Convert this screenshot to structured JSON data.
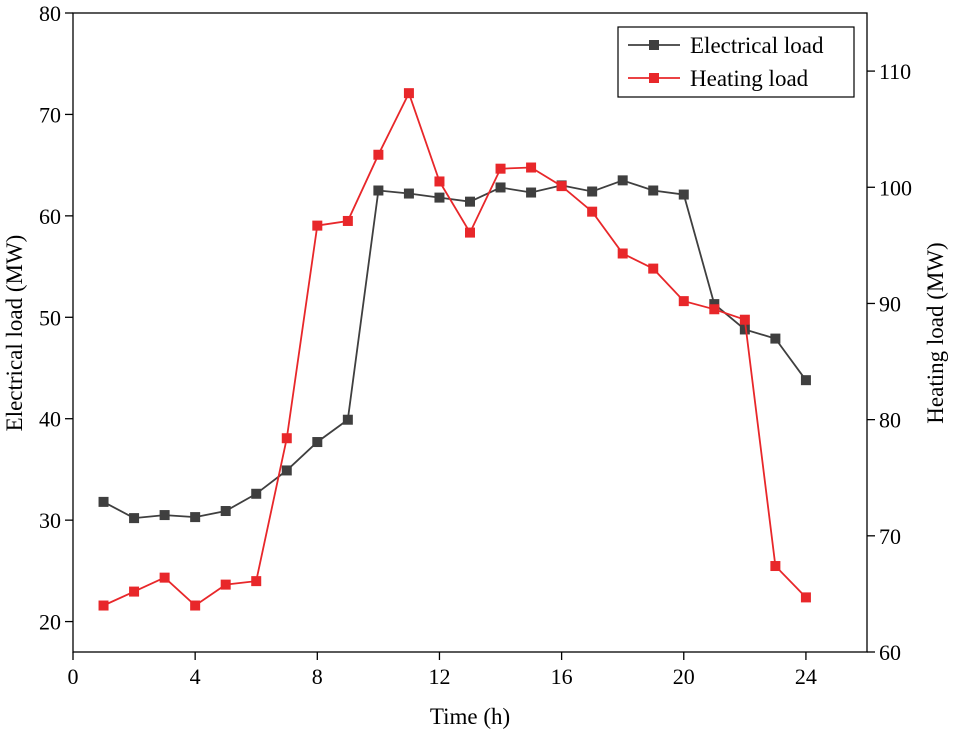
{
  "chart_data": {
    "type": "line",
    "title": "",
    "xlabel": "Time (h)",
    "ylabel": "Electrical load (MW)",
    "y2label": "Heating load (MW)",
    "xlim": [
      0,
      26
    ],
    "ylim": [
      17,
      80
    ],
    "y2lim": [
      60,
      115
    ],
    "xticks": [
      0,
      4,
      8,
      12,
      16,
      20,
      24
    ],
    "yticks": [
      20,
      30,
      40,
      50,
      60,
      70,
      80
    ],
    "y2ticks": [
      60,
      70,
      80,
      90,
      100,
      110
    ],
    "legend_position": "top-right",
    "x": [
      1,
      2,
      3,
      4,
      5,
      6,
      7,
      8,
      9,
      10,
      11,
      12,
      13,
      14,
      15,
      16,
      17,
      18,
      19,
      20,
      21,
      22,
      23,
      24
    ],
    "series": [
      {
        "name": "Electrical load",
        "axis": "left",
        "color": "#3f3f3f",
        "values": [
          31.8,
          30.2,
          30.5,
          30.3,
          30.9,
          32.6,
          34.9,
          37.7,
          39.9,
          62.5,
          62.2,
          61.8,
          61.4,
          62.8,
          62.3,
          63.0,
          62.4,
          63.5,
          62.5,
          62.1,
          51.3,
          48.8,
          47.9,
          43.8
        ]
      },
      {
        "name": "Heating load",
        "axis": "right",
        "color": "#e8272a",
        "values": [
          64.0,
          65.2,
          66.4,
          64.0,
          65.8,
          66.1,
          78.4,
          96.7,
          97.1,
          102.8,
          108.1,
          100.5,
          96.1,
          101.6,
          101.7,
          100.1,
          97.9,
          94.3,
          93.0,
          90.2,
          89.5,
          88.6,
          67.4,
          64.7
        ]
      }
    ]
  }
}
